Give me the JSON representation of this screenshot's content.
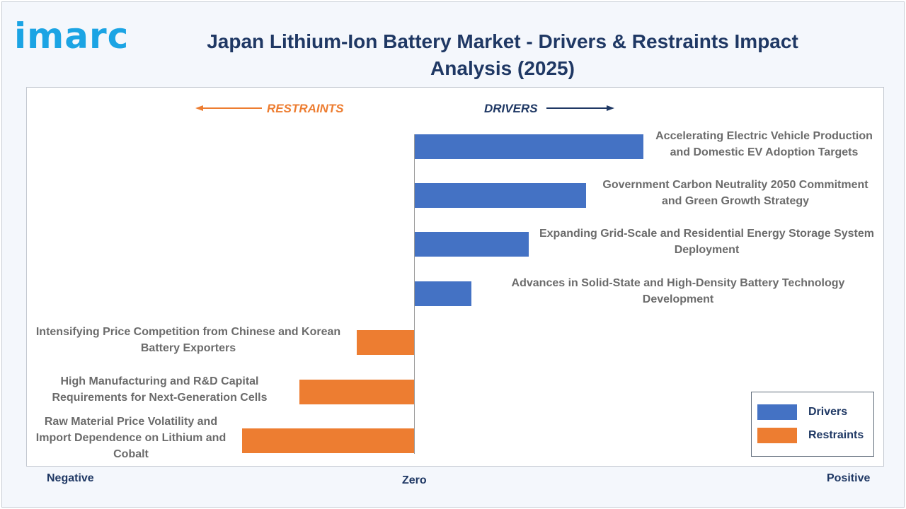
{
  "logo": "imarc",
  "title_line1": "Japan Lithium-Ion Battery Market - Drivers & Restraints Impact",
  "title_line2": "Analysis (2025)",
  "direction_labels": {
    "restraints": "RESTRAINTS",
    "drivers": "DRIVERS"
  },
  "axis": {
    "negative": "Negative",
    "zero": "Zero",
    "positive": "Positive"
  },
  "colors": {
    "drivers": "#4472c4",
    "restraints": "#ed7d31",
    "title": "#1f3864",
    "label": "#6b6b6b"
  },
  "legend": [
    {
      "name": "Drivers",
      "color": "#4472c4"
    },
    {
      "name": "Restraints",
      "color": "#ed7d31"
    }
  ],
  "chart_data": {
    "type": "bar",
    "orientation": "horizontal",
    "xlim": [
      -3,
      4
    ],
    "categories": [
      {
        "label": "Accelerating Electric Vehicle Production and Domestic EV Adoption Targets",
        "lines": [
          "Accelerating Electric Vehicle Production",
          "and Domestic EV Adoption Targets"
        ],
        "value": 4,
        "series": "Drivers"
      },
      {
        "label": "Government Carbon Neutrality 2050 Commitment and Green Growth Strategy",
        "lines": [
          "Government Carbon Neutrality 2050 Commitment",
          "and Green Growth Strategy"
        ],
        "value": 3,
        "series": "Drivers"
      },
      {
        "label": "Expanding Grid-Scale and Residential Energy Storage System Deployment",
        "lines": [
          "Expanding Grid-Scale and Residential Energy Storage System",
          "Deployment"
        ],
        "value": 2,
        "series": "Drivers"
      },
      {
        "label": "Advances in Solid-State and High-Density Battery Technology Development",
        "lines": [
          "Advances in Solid-State and High-Density Battery Technology",
          "Development"
        ],
        "value": 1,
        "series": "Drivers"
      },
      {
        "label": "Intensifying Price Competition from Chinese and Korean Battery Exporters",
        "lines": [
          "Intensifying Price Competition from Chinese and Korean",
          "Battery Exporters"
        ],
        "value": -1,
        "series": "Restraints"
      },
      {
        "label": "High Manufacturing and R&D Capital Requirements for Next-Generation Cells",
        "lines": [
          "High Manufacturing and R&D Capital",
          "Requirements for Next-Generation Cells"
        ],
        "value": -2,
        "series": "Restraints"
      },
      {
        "label": "Raw Material Price Volatility and Import Dependence on Lithium and Cobalt",
        "lines": [
          "Raw Material Price Volatility and",
          "Import Dependence on Lithium and",
          "Cobalt"
        ],
        "value": -3,
        "series": "Restraints"
      }
    ]
  }
}
